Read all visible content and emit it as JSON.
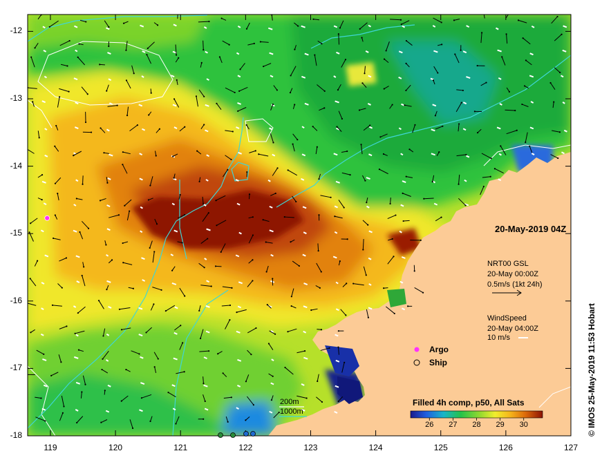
{
  "map": {
    "title": "20-May-2019 04Z",
    "credit": "© IMOS 25-May-2019 11:53 Hobart",
    "x_ticks": [
      "119",
      "120",
      "121",
      "122",
      "123",
      "124",
      "125",
      "126",
      "127"
    ],
    "y_ticks": [
      "-12",
      "-13",
      "-14",
      "-15",
      "-16",
      "-17",
      "-18"
    ],
    "lon_range": [
      118.65,
      127
    ],
    "lat_range": [
      -18,
      -11.75
    ],
    "gsl": {
      "title": "NRT00 GSL",
      "time": "20-May 00:00Z",
      "scale": "0.5m/s (1kt 24h)"
    },
    "wind": {
      "title": "WindSpeed",
      "time": "20-May 04:00Z",
      "scale": "10 m/s"
    },
    "legend": {
      "argo": "Argo",
      "ship": "Ship"
    },
    "contours": {
      "c200": "200m",
      "c1000": "1000m"
    },
    "colorbar": {
      "title": "Filled 4h comp, p50, All Sats",
      "labels": [
        "26",
        "27",
        "28",
        "29",
        "30"
      ],
      "range": [
        25.2,
        30.8
      ]
    },
    "colors": {
      "land": "#fccb96",
      "contour200": "#ffffff",
      "contour1000": "#3fd6d6",
      "argo": "#ff33ff"
    },
    "argo_position": {
      "lon": 118.95,
      "lat": -14.77
    }
  }
}
